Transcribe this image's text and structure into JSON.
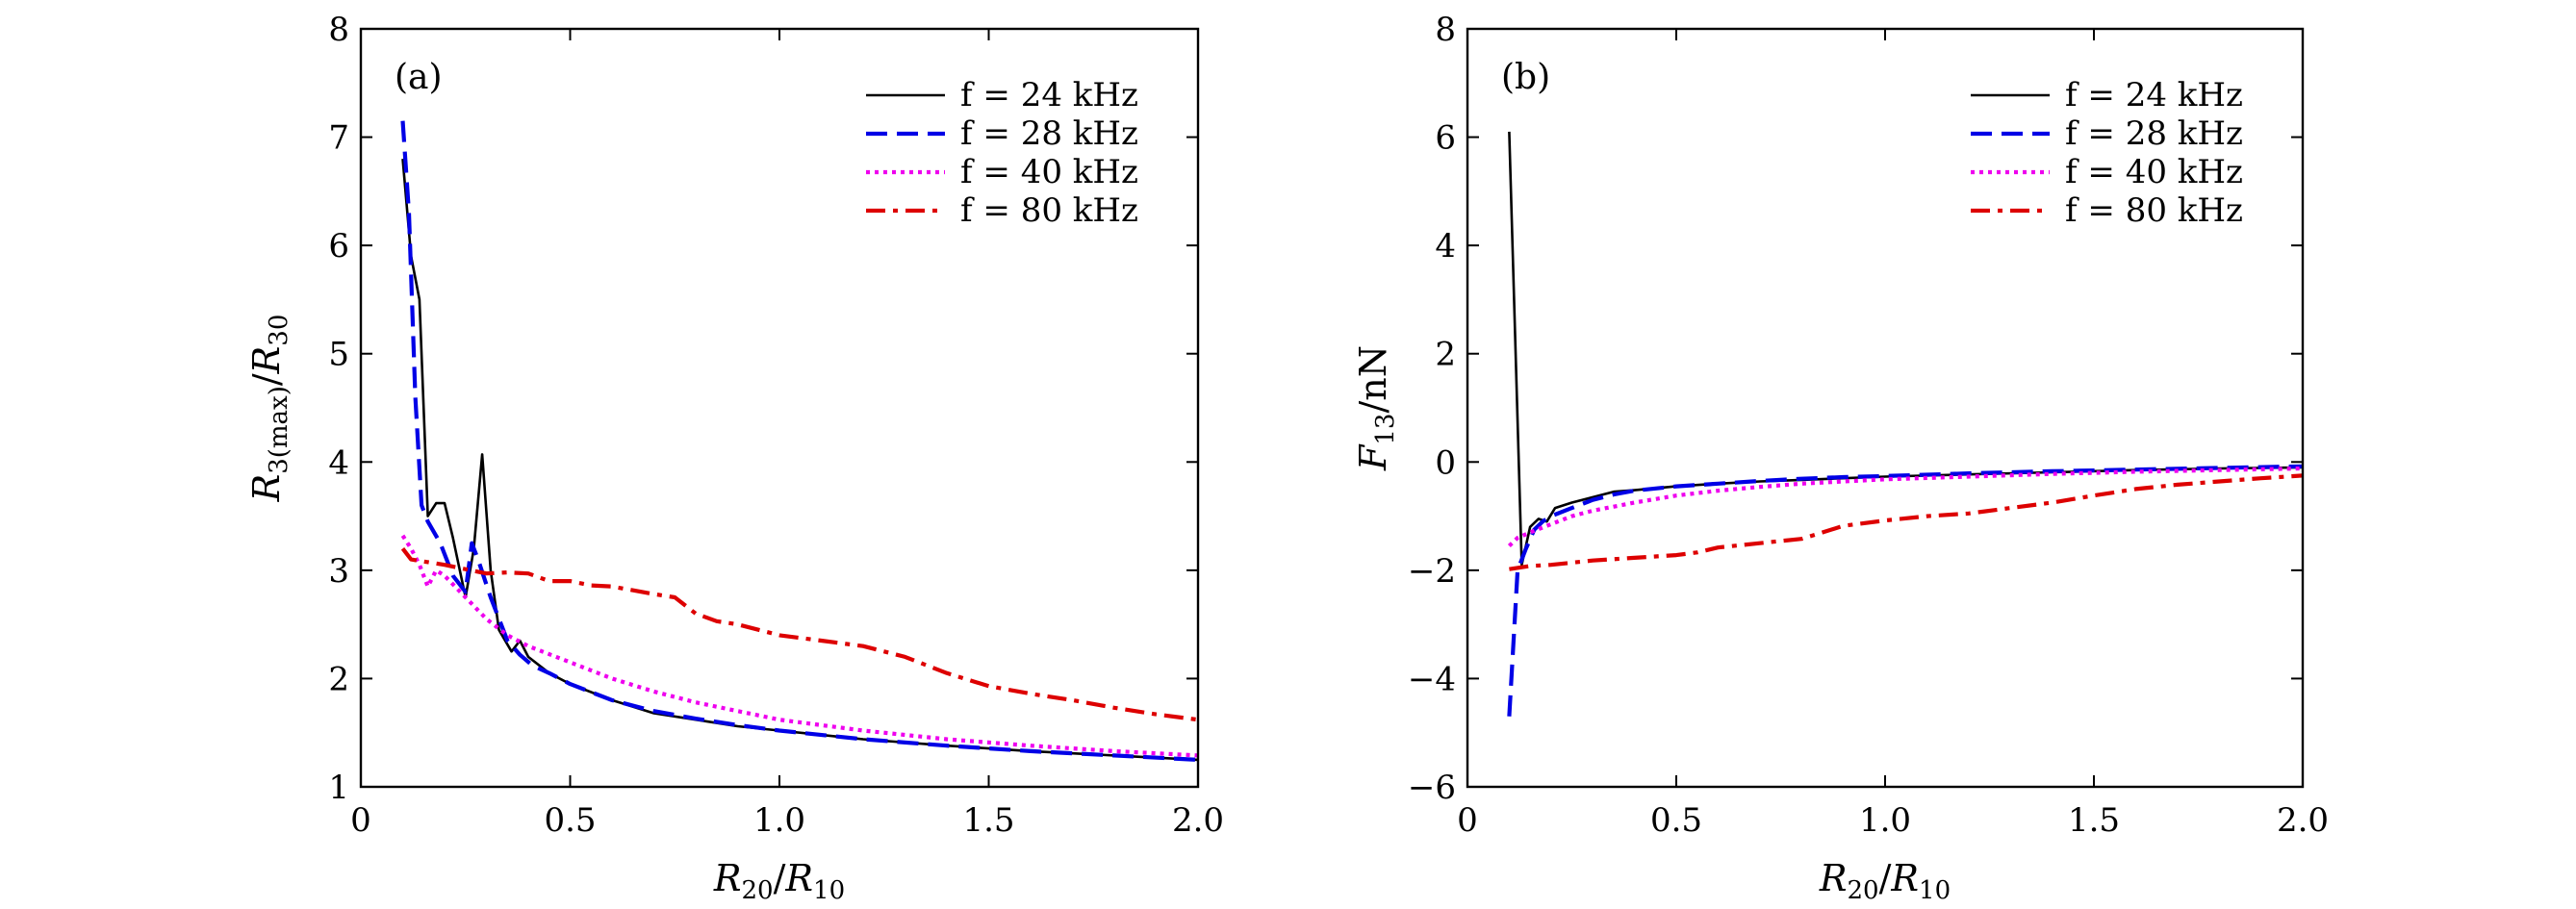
{
  "chart_data": [
    {
      "type": "line",
      "panel_label": "(a)",
      "xlabel": "R20/R10",
      "ylabel": "R3(max)/R30",
      "xlim": [
        0,
        2.0
      ],
      "ylim": [
        1,
        8
      ],
      "x_ticks": [
        "0",
        "0.5",
        "1.0",
        "1.5",
        "2.0"
      ],
      "y_ticks": [
        "1",
        "2",
        "3",
        "4",
        "5",
        "6",
        "7",
        "8"
      ],
      "legend_position": "top-right",
      "series": [
        {
          "name": "f = 24 kHz",
          "color": "#000000",
          "style": "solid",
          "points": [
            [
              0.1,
              6.8
            ],
            [
              0.12,
              5.9
            ],
            [
              0.14,
              5.5
            ],
            [
              0.16,
              3.5
            ],
            [
              0.18,
              3.62
            ],
            [
              0.2,
              3.62
            ],
            [
              0.22,
              3.3
            ],
            [
              0.25,
              2.75
            ],
            [
              0.27,
              3.2
            ],
            [
              0.29,
              4.07
            ],
            [
              0.31,
              3.0
            ],
            [
              0.33,
              2.45
            ],
            [
              0.36,
              2.25
            ],
            [
              0.38,
              2.35
            ],
            [
              0.4,
              2.2
            ],
            [
              0.45,
              2.05
            ],
            [
              0.5,
              1.95
            ],
            [
              0.6,
              1.8
            ],
            [
              0.7,
              1.68
            ],
            [
              0.8,
              1.62
            ],
            [
              0.9,
              1.56
            ],
            [
              1.0,
              1.52
            ],
            [
              1.2,
              1.44
            ],
            [
              1.4,
              1.38
            ],
            [
              1.6,
              1.33
            ],
            [
              1.8,
              1.29
            ],
            [
              2.0,
              1.25
            ]
          ]
        },
        {
          "name": "f = 28 kHz",
          "color": "#0000e6",
          "style": "dashed",
          "points": [
            [
              0.1,
              7.15
            ],
            [
              0.115,
              6.3
            ],
            [
              0.13,
              4.6
            ],
            [
              0.145,
              3.6
            ],
            [
              0.16,
              3.45
            ],
            [
              0.19,
              3.25
            ],
            [
              0.22,
              2.95
            ],
            [
              0.25,
              2.8
            ],
            [
              0.265,
              3.25
            ],
            [
              0.28,
              3.1
            ],
            [
              0.31,
              2.75
            ],
            [
              0.35,
              2.35
            ],
            [
              0.38,
              2.22
            ],
            [
              0.41,
              2.12
            ],
            [
              0.45,
              2.05
            ],
            [
              0.5,
              1.95
            ],
            [
              0.6,
              1.8
            ],
            [
              0.7,
              1.7
            ],
            [
              0.8,
              1.63
            ],
            [
              0.9,
              1.57
            ],
            [
              1.0,
              1.52
            ],
            [
              1.2,
              1.44
            ],
            [
              1.4,
              1.38
            ],
            [
              1.6,
              1.33
            ],
            [
              1.8,
              1.29
            ],
            [
              2.0,
              1.25
            ]
          ]
        },
        {
          "name": "f = 40 kHz",
          "color": "#ee00ee",
          "style": "dotted",
          "points": [
            [
              0.1,
              3.32
            ],
            [
              0.12,
              3.2
            ],
            [
              0.14,
              3.05
            ],
            [
              0.16,
              2.85
            ],
            [
              0.18,
              3.0
            ],
            [
              0.2,
              2.95
            ],
            [
              0.25,
              2.75
            ],
            [
              0.3,
              2.55
            ],
            [
              0.35,
              2.4
            ],
            [
              0.4,
              2.3
            ],
            [
              0.5,
              2.15
            ],
            [
              0.6,
              2.0
            ],
            [
              0.7,
              1.88
            ],
            [
              0.8,
              1.78
            ],
            [
              0.9,
              1.7
            ],
            [
              1.0,
              1.62
            ],
            [
              1.2,
              1.52
            ],
            [
              1.4,
              1.44
            ],
            [
              1.6,
              1.38
            ],
            [
              1.8,
              1.33
            ],
            [
              2.0,
              1.29
            ]
          ]
        },
        {
          "name": "f = 80 kHz",
          "color": "#dd0000",
          "style": "dashdot",
          "points": [
            [
              0.1,
              3.2
            ],
            [
              0.12,
              3.1
            ],
            [
              0.2,
              3.05
            ],
            [
              0.3,
              2.97
            ],
            [
              0.35,
              2.98
            ],
            [
              0.4,
              2.97
            ],
            [
              0.45,
              2.9
            ],
            [
              0.5,
              2.9
            ],
            [
              0.55,
              2.86
            ],
            [
              0.6,
              2.85
            ],
            [
              0.7,
              2.78
            ],
            [
              0.75,
              2.75
            ],
            [
              0.8,
              2.6
            ],
            [
              0.85,
              2.53
            ],
            [
              0.9,
              2.5
            ],
            [
              1.0,
              2.4
            ],
            [
              1.1,
              2.35
            ],
            [
              1.2,
              2.3
            ],
            [
              1.3,
              2.2
            ],
            [
              1.4,
              2.05
            ],
            [
              1.5,
              1.93
            ],
            [
              1.6,
              1.86
            ],
            [
              1.7,
              1.8
            ],
            [
              1.8,
              1.73
            ],
            [
              1.9,
              1.67
            ],
            [
              2.0,
              1.62
            ]
          ]
        }
      ]
    },
    {
      "type": "line",
      "panel_label": "(b)",
      "xlabel": "R20/R10",
      "ylabel": "F13/nN",
      "xlim": [
        0,
        2.0
      ],
      "ylim": [
        -6,
        8
      ],
      "x_ticks": [
        "0",
        "0.5",
        "1.0",
        "1.5",
        "2.0"
      ],
      "y_ticks": [
        "−6",
        "−4",
        "−2",
        "0",
        "2",
        "4",
        "6",
        "8"
      ],
      "legend_position": "top-right",
      "series": [
        {
          "name": "f = 24 kHz",
          "color": "#000000",
          "style": "solid",
          "points": [
            [
              0.1,
              6.1
            ],
            [
              0.13,
              -1.9
            ],
            [
              0.15,
              -1.2
            ],
            [
              0.17,
              -1.05
            ],
            [
              0.19,
              -1.1
            ],
            [
              0.21,
              -0.85
            ],
            [
              0.25,
              -0.75
            ],
            [
              0.3,
              -0.65
            ],
            [
              0.35,
              -0.55
            ],
            [
              0.4,
              -0.52
            ],
            [
              0.5,
              -0.45
            ],
            [
              0.6,
              -0.4
            ],
            [
              0.7,
              -0.36
            ],
            [
              0.8,
              -0.33
            ],
            [
              0.9,
              -0.3
            ],
            [
              1.0,
              -0.27
            ],
            [
              1.2,
              -0.23
            ],
            [
              1.4,
              -0.19
            ],
            [
              1.6,
              -0.15
            ],
            [
              1.8,
              -0.12
            ],
            [
              2.0,
              -0.1
            ]
          ]
        },
        {
          "name": "f = 28 kHz",
          "color": "#0000e6",
          "style": "dashed",
          "points": [
            [
              0.1,
              -4.7
            ],
            [
              0.12,
              -2.0
            ],
            [
              0.14,
              -1.6
            ],
            [
              0.16,
              -1.25
            ],
            [
              0.18,
              -1.1
            ],
            [
              0.2,
              -1.0
            ],
            [
              0.25,
              -0.85
            ],
            [
              0.3,
              -0.7
            ],
            [
              0.35,
              -0.6
            ],
            [
              0.4,
              -0.53
            ],
            [
              0.5,
              -0.45
            ],
            [
              0.6,
              -0.4
            ],
            [
              0.7,
              -0.35
            ],
            [
              0.8,
              -0.31
            ],
            [
              0.9,
              -0.28
            ],
            [
              1.0,
              -0.26
            ],
            [
              1.2,
              -0.21
            ],
            [
              1.4,
              -0.17
            ],
            [
              1.6,
              -0.14
            ],
            [
              1.8,
              -0.11
            ],
            [
              2.0,
              -0.08
            ]
          ]
        },
        {
          "name": "f = 40 kHz",
          "color": "#ee00ee",
          "style": "dotted",
          "points": [
            [
              0.1,
              -1.55
            ],
            [
              0.12,
              -1.4
            ],
            [
              0.15,
              -1.3
            ],
            [
              0.2,
              -1.15
            ],
            [
              0.25,
              -1.0
            ],
            [
              0.3,
              -0.9
            ],
            [
              0.4,
              -0.75
            ],
            [
              0.5,
              -0.62
            ],
            [
              0.6,
              -0.53
            ],
            [
              0.7,
              -0.46
            ],
            [
              0.8,
              -0.4
            ],
            [
              0.9,
              -0.36
            ],
            [
              1.0,
              -0.32
            ],
            [
              1.2,
              -0.27
            ],
            [
              1.4,
              -0.22
            ],
            [
              1.6,
              -0.18
            ],
            [
              1.8,
              -0.15
            ],
            [
              2.0,
              -0.12
            ]
          ]
        },
        {
          "name": "f = 80 kHz",
          "color": "#dd0000",
          "style": "dashdot",
          "points": [
            [
              0.1,
              -1.98
            ],
            [
              0.15,
              -1.92
            ],
            [
              0.2,
              -1.9
            ],
            [
              0.3,
              -1.82
            ],
            [
              0.4,
              -1.77
            ],
            [
              0.5,
              -1.72
            ],
            [
              0.55,
              -1.67
            ],
            [
              0.6,
              -1.58
            ],
            [
              0.7,
              -1.5
            ],
            [
              0.8,
              -1.42
            ],
            [
              0.85,
              -1.3
            ],
            [
              0.9,
              -1.18
            ],
            [
              1.0,
              -1.08
            ],
            [
              1.1,
              -1.0
            ],
            [
              1.2,
              -0.95
            ],
            [
              1.3,
              -0.85
            ],
            [
              1.4,
              -0.75
            ],
            [
              1.5,
              -0.62
            ],
            [
              1.6,
              -0.5
            ],
            [
              1.7,
              -0.42
            ],
            [
              1.8,
              -0.36
            ],
            [
              1.9,
              -0.3
            ],
            [
              2.0,
              -0.25
            ]
          ]
        }
      ]
    }
  ]
}
